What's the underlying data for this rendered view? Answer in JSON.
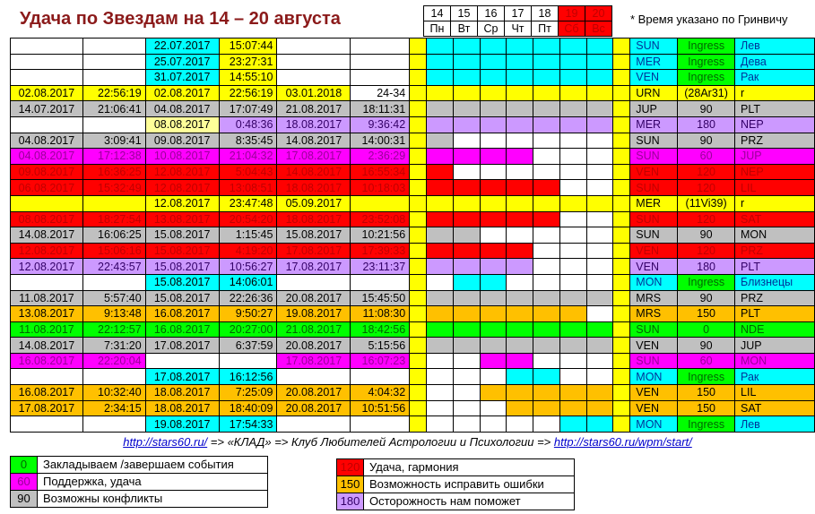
{
  "title": "Удача по Звездам на 14 – 20 августа",
  "note": "* Время указано по Гринвичу",
  "colors": {
    "white": "#ffffff",
    "cyan": "#00ffff",
    "yellow": "#ffff00",
    "lightyellow": "#ffff99",
    "gray": "#c0c0c0",
    "lavender": "#cc99ff",
    "magenta": "#ff00ff",
    "red": "#ff0000",
    "orange": "#ffc000",
    "green": "#00ff00"
  },
  "days": [
    {
      "num": "14",
      "dow": "Пн",
      "weekend": false
    },
    {
      "num": "15",
      "dow": "Вт",
      "weekend": false
    },
    {
      "num": "16",
      "dow": "Ср",
      "weekend": false
    },
    {
      "num": "17",
      "dow": "Чт",
      "weekend": false
    },
    {
      "num": "18",
      "dow": "Пт",
      "weekend": false
    },
    {
      "num": "19",
      "dow": "Сб",
      "weekend": true
    },
    {
      "num": "20",
      "dow": "Вс",
      "weekend": true
    }
  ],
  "rows": [
    {
      "cells": [
        "",
        "",
        "22.07.2017",
        "15:07:44",
        "",
        ""
      ],
      "bg": [
        "white",
        "white",
        "cyan",
        "yellow",
        "white",
        "white"
      ],
      "days": [
        "cyan",
        "cyan",
        "cyan",
        "cyan",
        "cyan",
        "cyan",
        "cyan"
      ],
      "planet": "SUN",
      "aspect": "Ingress",
      "target": "Лев",
      "rowcolor": "cyan",
      "aspect_bg": "green"
    },
    {
      "cells": [
        "",
        "",
        "25.07.2017",
        "23:27:31",
        "",
        ""
      ],
      "bg": [
        "white",
        "white",
        "cyan",
        "yellow",
        "white",
        "white"
      ],
      "days": [
        "cyan",
        "cyan",
        "cyan",
        "cyan",
        "cyan",
        "cyan",
        "cyan"
      ],
      "planet": "MER",
      "aspect": "Ingress",
      "target": "Дева",
      "rowcolor": "cyan",
      "aspect_bg": "green"
    },
    {
      "cells": [
        "",
        "",
        "31.07.2017",
        "14:55:10",
        "",
        ""
      ],
      "bg": [
        "white",
        "white",
        "cyan",
        "yellow",
        "white",
        "white"
      ],
      "days": [
        "cyan",
        "cyan",
        "cyan",
        "cyan",
        "cyan",
        "cyan",
        "cyan"
      ],
      "planet": "VEN",
      "aspect": "Ingress",
      "target": "Рак",
      "rowcolor": "cyan",
      "aspect_bg": "green"
    },
    {
      "cells": [
        "02.08.2017",
        "22:56:19",
        "02.08.2017",
        "22:56:19",
        "03.01.2018",
        "24-34"
      ],
      "bg": [
        "yellow",
        "yellow",
        "yellow",
        "yellow",
        "yellow",
        "white"
      ],
      "days": [
        "yellow",
        "yellow",
        "yellow",
        "yellow",
        "yellow",
        "yellow",
        "yellow"
      ],
      "planet": "URN",
      "aspect": "(28Ar31)",
      "target": "r",
      "rowcolor": "yellow",
      "aspect_bg": "yellow"
    },
    {
      "cells": [
        "14.07.2017",
        "21:06:41",
        "04.08.2017",
        "17:07:49",
        "21.08.2017",
        "18:11:31"
      ],
      "bg": [
        "gray",
        "gray",
        "gray",
        "gray",
        "gray",
        "gray"
      ],
      "days": [
        "gray",
        "gray",
        "gray",
        "gray",
        "gray",
        "gray",
        "gray"
      ],
      "planet": "JUP",
      "aspect": "90",
      "target": "PLT",
      "rowcolor": "gray",
      "aspect_bg": "gray"
    },
    {
      "cells": [
        "",
        "",
        "08.08.2017",
        "0:48:36",
        "18.08.2017",
        "9:36:42"
      ],
      "bg": [
        "white",
        "white",
        "lightyellow",
        "lavender",
        "lavender",
        "lavender"
      ],
      "days": [
        "lavender",
        "lavender",
        "lavender",
        "lavender",
        "lavender",
        "lavender",
        "lavender"
      ],
      "planet": "MER",
      "aspect": "180",
      "target": "NEP",
      "rowcolor": "lavender",
      "aspect_bg": "lavender"
    },
    {
      "cells": [
        "04.08.2017",
        "3:09:41",
        "09.08.2017",
        "8:35:45",
        "14.08.2017",
        "14:00:31"
      ],
      "bg": [
        "gray",
        "gray",
        "gray",
        "gray",
        "gray",
        "gray"
      ],
      "days": [
        "gray",
        "white",
        "white",
        "white",
        "white",
        "white",
        "white"
      ],
      "planet": "SUN",
      "aspect": "90",
      "target": "PRZ",
      "rowcolor": "gray",
      "aspect_bg": "gray"
    },
    {
      "cells": [
        "04.08.2017",
        "17:12:38",
        "10.08.2017",
        "21:04:32",
        "17.08.2017",
        "2:36:29"
      ],
      "bg": [
        "magenta",
        "magenta",
        "magenta",
        "magenta",
        "magenta",
        "magenta"
      ],
      "days": [
        "magenta",
        "magenta",
        "magenta",
        "magenta",
        "white",
        "white",
        "white"
      ],
      "planet": "SUN",
      "aspect": "60",
      "target": "JUP",
      "rowcolor": "magenta",
      "aspect_bg": "magenta"
    },
    {
      "cells": [
        "09.08.2017",
        "16:36:25",
        "12.08.2017",
        "5:04:43",
        "14.08.2017",
        "16:55:34"
      ],
      "bg": [
        "red",
        "red",
        "red",
        "red",
        "red",
        "red"
      ],
      "days": [
        "red",
        "white",
        "white",
        "white",
        "white",
        "white",
        "white"
      ],
      "planet": "VEN",
      "aspect": "120",
      "target": "NEP",
      "rowcolor": "red",
      "aspect_bg": "red"
    },
    {
      "cells": [
        "06.08.2017",
        "15:32:49",
        "12.08.2017",
        "13:08:51",
        "18.08.2017",
        "10:18:03"
      ],
      "bg": [
        "red",
        "red",
        "red",
        "red",
        "red",
        "red"
      ],
      "days": [
        "red",
        "red",
        "red",
        "red",
        "red",
        "white",
        "white"
      ],
      "planet": "SUN",
      "aspect": "120",
      "target": "LIL",
      "rowcolor": "red",
      "aspect_bg": "red"
    },
    {
      "cells": [
        "",
        "",
        "12.08.2017",
        "23:47:48",
        "05.09.2017",
        ""
      ],
      "bg": [
        "yellow",
        "yellow",
        "yellow",
        "yellow",
        "yellow",
        "yellow"
      ],
      "days": [
        "yellow",
        "yellow",
        "yellow",
        "yellow",
        "yellow",
        "yellow",
        "yellow"
      ],
      "planet": "MER",
      "aspect": "(11Vi39)",
      "target": "r",
      "rowcolor": "yellow",
      "aspect_bg": "yellow"
    },
    {
      "cells": [
        "08.08.2017",
        "18:27:54",
        "13.08.2017",
        "20:54:20",
        "18.08.2017",
        "23:52:08"
      ],
      "bg": [
        "red",
        "red",
        "red",
        "red",
        "red",
        "red"
      ],
      "days": [
        "red",
        "red",
        "red",
        "red",
        "red",
        "white",
        "white"
      ],
      "planet": "SUN",
      "aspect": "120",
      "target": "SAT",
      "rowcolor": "red",
      "aspect_bg": "red"
    },
    {
      "cells": [
        "14.08.2017",
        "16:06:25",
        "15.08.2017",
        "1:15:45",
        "15.08.2017",
        "10:21:56"
      ],
      "bg": [
        "gray",
        "gray",
        "gray",
        "gray",
        "gray",
        "gray"
      ],
      "days": [
        "gray",
        "gray",
        "white",
        "white",
        "white",
        "white",
        "white"
      ],
      "planet": "SUN",
      "aspect": "90",
      "target": "MON",
      "rowcolor": "gray",
      "aspect_bg": "gray"
    },
    {
      "cells": [
        "12.08.2017",
        "15:06:16",
        "15.08.2017",
        "4:19:20",
        "17.08.2017",
        "17:39:33"
      ],
      "bg": [
        "red",
        "red",
        "red",
        "red",
        "red",
        "red"
      ],
      "days": [
        "red",
        "red",
        "red",
        "red",
        "white",
        "white",
        "white"
      ],
      "planet": "VEN",
      "aspect": "120",
      "target": "PRZ",
      "rowcolor": "red",
      "aspect_bg": "red"
    },
    {
      "cells": [
        "12.08.2017",
        "22:43:57",
        "15.08.2017",
        "10:56:27",
        "17.08.2017",
        "23:11:37"
      ],
      "bg": [
        "lavender",
        "lavender",
        "lavender",
        "lavender",
        "lavender",
        "lavender"
      ],
      "days": [
        "lavender",
        "lavender",
        "lavender",
        "lavender",
        "white",
        "white",
        "white"
      ],
      "planet": "VEN",
      "aspect": "180",
      "target": "PLT",
      "rowcolor": "lavender",
      "aspect_bg": "lavender"
    },
    {
      "cells": [
        "",
        "",
        "15.08.2017",
        "14:06:01",
        "",
        ""
      ],
      "bg": [
        "white",
        "white",
        "cyan",
        "cyan",
        "white",
        "white"
      ],
      "days": [
        "white",
        "cyan",
        "cyan",
        "white",
        "white",
        "white",
        "white"
      ],
      "planet": "MON",
      "aspect": "Ingress",
      "target": "Близнецы",
      "rowcolor": "cyan",
      "aspect_bg": "green"
    },
    {
      "cells": [
        "11.08.2017",
        "5:57:40",
        "15.08.2017",
        "22:26:36",
        "20.08.2017",
        "15:45:50"
      ],
      "bg": [
        "gray",
        "gray",
        "gray",
        "gray",
        "gray",
        "gray"
      ],
      "days": [
        "gray",
        "gray",
        "gray",
        "gray",
        "gray",
        "gray",
        "gray"
      ],
      "planet": "MRS",
      "aspect": "90",
      "target": "PRZ",
      "rowcolor": "gray",
      "aspect_bg": "gray"
    },
    {
      "cells": [
        "13.08.2017",
        "9:13:48",
        "16.08.2017",
        "9:50:27",
        "19.08.2017",
        "11:08:30"
      ],
      "bg": [
        "orange",
        "orange",
        "orange",
        "orange",
        "orange",
        "orange"
      ],
      "days": [
        "orange",
        "orange",
        "orange",
        "orange",
        "orange",
        "orange",
        "white"
      ],
      "planet": "MRS",
      "aspect": "150",
      "target": "PLT",
      "rowcolor": "orange",
      "aspect_bg": "orange"
    },
    {
      "cells": [
        "11.08.2017",
        "22:12:57",
        "16.08.2017",
        "20:27:00",
        "21.08.2017",
        "18:42:56"
      ],
      "bg": [
        "green",
        "green",
        "green",
        "green",
        "green",
        "green"
      ],
      "days": [
        "green",
        "green",
        "green",
        "green",
        "green",
        "green",
        "green"
      ],
      "planet": "SUN",
      "aspect": "0",
      "target": "NDE",
      "rowcolor": "green",
      "aspect_bg": "green"
    },
    {
      "cells": [
        "14.08.2017",
        "7:31:20",
        "17.08.2017",
        "6:37:59",
        "20.08.2017",
        "5:15:56"
      ],
      "bg": [
        "gray",
        "gray",
        "gray",
        "gray",
        "gray",
        "gray"
      ],
      "days": [
        "gray",
        "gray",
        "gray",
        "gray",
        "gray",
        "gray",
        "gray"
      ],
      "planet": "VEN",
      "aspect": "90",
      "target": "JUP",
      "rowcolor": "gray",
      "aspect_bg": "gray"
    },
    {
      "cells": [
        "16.08.2017",
        "22:20:04",
        "",
        "",
        "17.08.2017",
        "16:07:23"
      ],
      "bg": [
        "magenta",
        "magenta",
        "white",
        "white",
        "magenta",
        "magenta"
      ],
      "days": [
        "white",
        "white",
        "magenta",
        "magenta",
        "white",
        "white",
        "white"
      ],
      "planet": "SUN",
      "aspect": "60",
      "target": "MON",
      "rowcolor": "magenta",
      "aspect_bg": "magenta"
    },
    {
      "cells": [
        "",
        "",
        "17.08.2017",
        "16:12:56",
        "",
        ""
      ],
      "bg": [
        "white",
        "white",
        "cyan",
        "cyan",
        "white",
        "white"
      ],
      "days": [
        "white",
        "white",
        "white",
        "cyan",
        "cyan",
        "white",
        "white"
      ],
      "planet": "MON",
      "aspect": "Ingress",
      "target": "Рак",
      "rowcolor": "cyan",
      "aspect_bg": "green"
    },
    {
      "cells": [
        "16.08.2017",
        "10:32:40",
        "18.08.2017",
        "7:25:09",
        "20.08.2017",
        "4:04:32"
      ],
      "bg": [
        "orange",
        "orange",
        "orange",
        "orange",
        "orange",
        "orange"
      ],
      "days": [
        "white",
        "white",
        "orange",
        "orange",
        "orange",
        "orange",
        "orange"
      ],
      "planet": "VEN",
      "aspect": "150",
      "target": "LIL",
      "rowcolor": "orange",
      "aspect_bg": "orange"
    },
    {
      "cells": [
        "17.08.2017",
        "2:34:15",
        "18.08.2017",
        "18:40:09",
        "20.08.2017",
        "10:51:56"
      ],
      "bg": [
        "orange",
        "orange",
        "orange",
        "orange",
        "orange",
        "orange"
      ],
      "days": [
        "white",
        "white",
        "white",
        "orange",
        "orange",
        "orange",
        "orange"
      ],
      "planet": "VEN",
      "aspect": "150",
      "target": "SAT",
      "rowcolor": "orange",
      "aspect_bg": "orange"
    },
    {
      "cells": [
        "",
        "",
        "19.08.2017",
        "17:54:33",
        "",
        ""
      ],
      "bg": [
        "white",
        "white",
        "cyan",
        "cyan",
        "white",
        "white"
      ],
      "days": [
        "white",
        "white",
        "white",
        "white",
        "white",
        "cyan",
        "cyan"
      ],
      "planet": "MON",
      "aspect": "Ingress",
      "target": "Лев",
      "rowcolor": "cyan",
      "aspect_bg": "green"
    }
  ],
  "footer": {
    "link1": "http://stars60.ru/",
    "middle": " => «КЛАД» => Клуб Любителей Астрологии и Психологии => ",
    "link2": "http://stars60.ru/wpm/start/"
  },
  "legend_left": [
    {
      "num": "0",
      "text": "Закладываем /завершаем события",
      "color": "green"
    },
    {
      "num": "60",
      "text": "Поддержка, удача",
      "color": "magenta"
    },
    {
      "num": "90",
      "text": "Возможны конфликты",
      "color": "gray"
    }
  ],
  "legend_right": [
    {
      "num": "120",
      "text": "Удача, гармония",
      "color": "red"
    },
    {
      "num": "150",
      "text": "Возможность исправить ошибки",
      "color": "orange"
    },
    {
      "num": "180",
      "text": "Осторожность нам поможет",
      "color": "lavender"
    }
  ]
}
